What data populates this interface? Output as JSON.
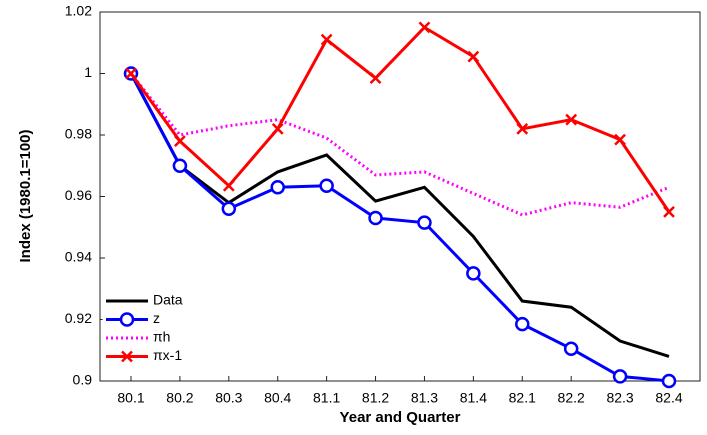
{
  "chart_data": {
    "type": "line",
    "xlabel": "Year and Quarter",
    "ylabel": "Index (1980.1=100)",
    "categories": [
      "80.1",
      "80.2",
      "80.3",
      "80.4",
      "81.1",
      "81.2",
      "81.3",
      "81.4",
      "82.1",
      "82.2",
      "82.3",
      "82.4"
    ],
    "ylim": [
      0.9,
      1.02
    ],
    "yticks": [
      0.9,
      0.92,
      0.94,
      0.96,
      0.98,
      1,
      1.02
    ],
    "legend": "lower left",
    "series": [
      {
        "name": "Data",
        "color": "#000000",
        "style": "solid",
        "marker": "none",
        "values": [
          1.0,
          0.97,
          0.958,
          0.968,
          0.9735,
          0.9585,
          0.963,
          0.947,
          0.926,
          0.924,
          0.913,
          0.908
        ]
      },
      {
        "name": "z",
        "color": "#0000ff",
        "style": "solid",
        "marker": "circle",
        "values": [
          1.0,
          0.97,
          0.956,
          0.963,
          0.9635,
          0.953,
          0.9515,
          0.935,
          0.9185,
          0.9105,
          0.9015,
          0.9
        ]
      },
      {
        "name": "πh",
        "color": "#ff00ff",
        "style": "dotted",
        "marker": "none",
        "values": [
          1.0,
          0.98,
          0.983,
          0.985,
          0.979,
          0.967,
          0.968,
          0.961,
          0.954,
          0.958,
          0.9565,
          0.963
        ]
      },
      {
        "name": "πx-1",
        "color": "#ff0000",
        "style": "solid",
        "marker": "x",
        "values": [
          1.0,
          0.978,
          0.9635,
          0.982,
          1.011,
          0.9985,
          1.015,
          1.0055,
          0.982,
          0.985,
          0.9785,
          0.955
        ]
      }
    ]
  }
}
